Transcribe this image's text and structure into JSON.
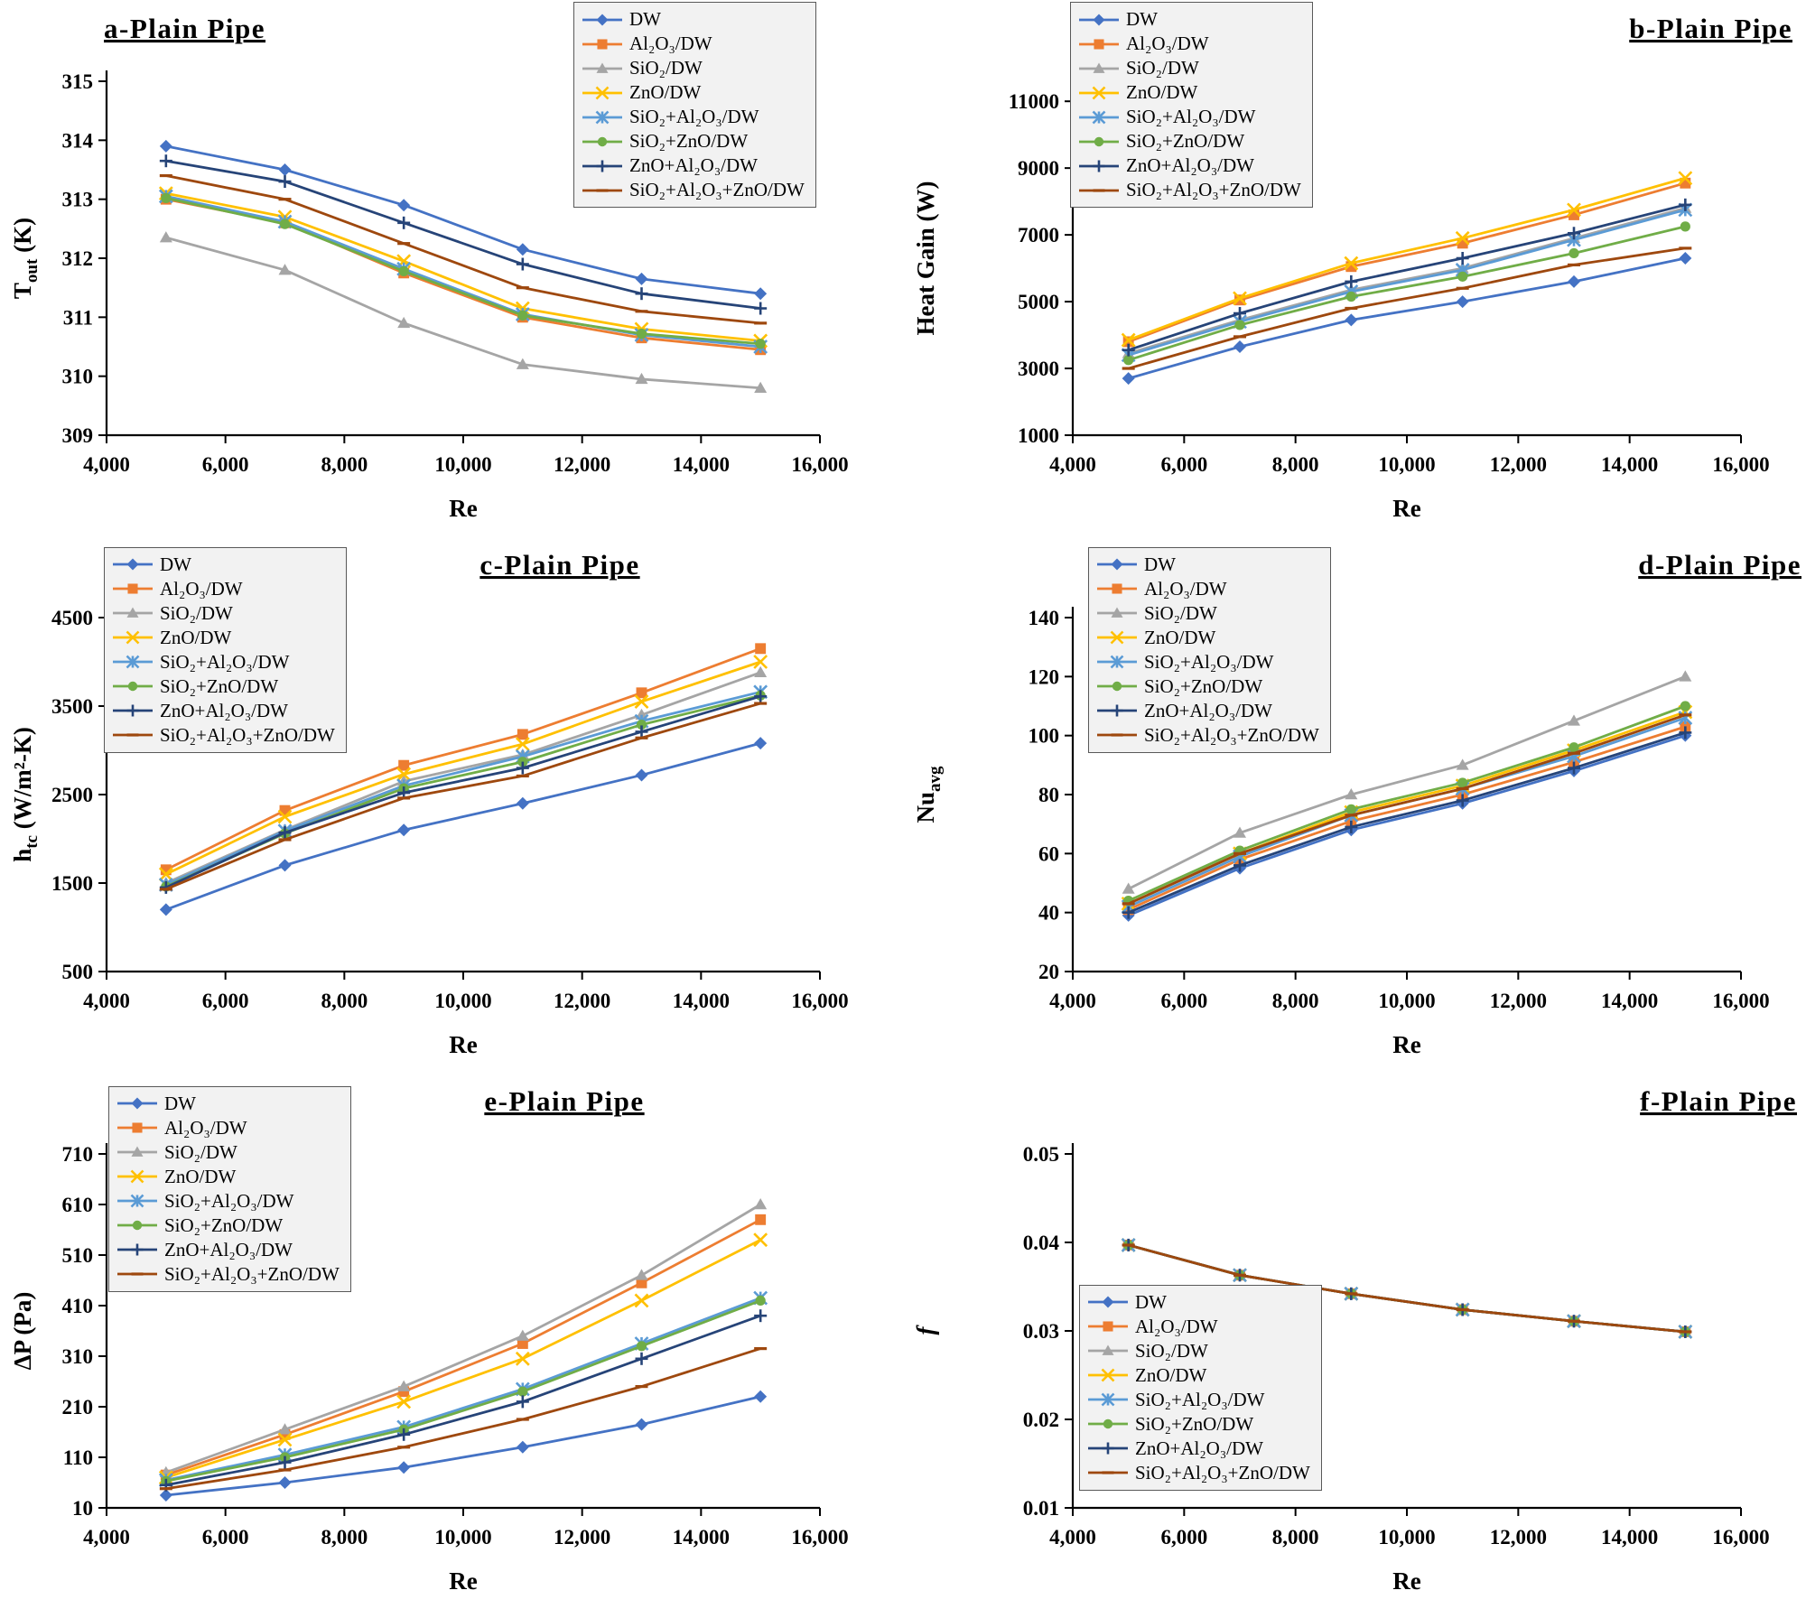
{
  "figure": {
    "x_label": "Re",
    "x_range": [
      4000,
      16000
    ],
    "x_ticks": [
      4000,
      6000,
      8000,
      10000,
      12000,
      14000,
      16000
    ],
    "x_values": [
      5000,
      7000,
      9000,
      11000,
      13000,
      15000
    ],
    "series_meta": [
      {
        "name": "DW",
        "color": "#4472C4",
        "marker": "diamond"
      },
      {
        "name": "Al₂O₃/DW",
        "color": "#ED7D31",
        "marker": "square"
      },
      {
        "name": "SiO₂/DW",
        "color": "#A5A5A5",
        "marker": "triangle"
      },
      {
        "name": "ZnO/DW",
        "color": "#FFC000",
        "marker": "x"
      },
      {
        "name": "SiO₂+Al₂O₃/DW",
        "color": "#5B9BD5",
        "marker": "star"
      },
      {
        "name": "SiO₂+ZnO/DW",
        "color": "#70AD47",
        "marker": "circle"
      },
      {
        "name": "ZnO+Al₂O₃/DW",
        "color": "#264478",
        "marker": "plus"
      },
      {
        "name": "SiO₂+Al₂O₃+ZnO/DW",
        "color": "#9E480E",
        "marker": "dash"
      }
    ]
  },
  "chart_data": [
    {
      "id": "a",
      "type": "line",
      "title": "a-Plain Pipe",
      "xlabel": "Re",
      "ylabel": "T_{out} (K)",
      "ylabel_italic": false,
      "ylim": [
        309,
        315
      ],
      "yticks": [
        309,
        310,
        311,
        312,
        313,
        314,
        315
      ],
      "ydecimals": 0,
      "x": [
        5000,
        7000,
        9000,
        11000,
        13000,
        15000
      ],
      "legend_pos": {
        "left": 0.635,
        "top": 0.004
      },
      "title_pos": {
        "x": 0.115,
        "anchor": "start"
      },
      "series": [
        {
          "name": "DW",
          "values": [
            313.9,
            313.5,
            312.9,
            312.15,
            311.65,
            311.4
          ]
        },
        {
          "name": "Al₂O₃/DW",
          "values": [
            313.0,
            312.6,
            311.75,
            311.0,
            310.65,
            310.45
          ]
        },
        {
          "name": "SiO₂/DW",
          "values": [
            312.35,
            311.8,
            310.9,
            310.2,
            309.95,
            309.8
          ]
        },
        {
          "name": "ZnO/DW",
          "values": [
            313.1,
            312.7,
            311.95,
            311.15,
            310.8,
            310.6
          ]
        },
        {
          "name": "SiO₂+Al₂O₃/DW",
          "values": [
            313.05,
            312.62,
            311.82,
            311.05,
            310.7,
            310.5
          ]
        },
        {
          "name": "SiO₂+ZnO/DW",
          "values": [
            313.02,
            312.58,
            311.78,
            311.03,
            310.72,
            310.55
          ]
        },
        {
          "name": "ZnO+Al₂O₃/DW",
          "values": [
            313.65,
            313.3,
            312.6,
            311.9,
            311.4,
            311.15
          ]
        },
        {
          "name": "SiO₂+Al₂O₃+ZnO/DW",
          "values": [
            313.4,
            313.0,
            312.25,
            311.5,
            311.1,
            310.9
          ]
        }
      ]
    },
    {
      "id": "b",
      "type": "line",
      "title": "b-Plain Pipe",
      "xlabel": "Re",
      "ylabel": "Heat Gain (W)",
      "ylabel_italic": false,
      "ylim": [
        1000,
        11600
      ],
      "yticks": [
        1000,
        3000,
        5000,
        7000,
        9000,
        11000
      ],
      "ydecimals": 0,
      "x": [
        5000,
        7000,
        9000,
        11000,
        13000,
        15000
      ],
      "legend_pos": {
        "left": 0.185,
        "top": 0.004
      },
      "title_pos": {
        "x": 0.985,
        "anchor": "end"
      },
      "series": [
        {
          "name": "DW",
          "values": [
            2700,
            3650,
            4450,
            5000,
            5600,
            6300
          ]
        },
        {
          "name": "Al₂O₃/DW",
          "values": [
            3800,
            5050,
            6050,
            6750,
            7600,
            8550
          ]
        },
        {
          "name": "SiO₂/DW",
          "values": [
            3450,
            4450,
            5350,
            6000,
            6900,
            7800
          ]
        },
        {
          "name": "ZnO/DW",
          "values": [
            3850,
            5100,
            6150,
            6900,
            7750,
            8700
          ]
        },
        {
          "name": "SiO₂+Al₂O₃/DW",
          "values": [
            3400,
            4400,
            5300,
            5950,
            6850,
            7750
          ]
        },
        {
          "name": "SiO₂+ZnO/DW",
          "values": [
            3250,
            4300,
            5150,
            5750,
            6450,
            7250
          ]
        },
        {
          "name": "ZnO+Al₂O₃/DW",
          "values": [
            3550,
            4650,
            5600,
            6300,
            7050,
            7900
          ]
        },
        {
          "name": "SiO₂+Al₂O₃+ZnO/DW",
          "values": [
            3000,
            3950,
            4800,
            5400,
            6100,
            6600
          ]
        }
      ]
    },
    {
      "id": "c",
      "type": "line",
      "title": "c-Plain Pipe",
      "xlabel": "Re",
      "ylabel": "h_{tc} (W/m²-K)",
      "ylabel_italic": false,
      "ylim": [
        500,
        4500
      ],
      "yticks": [
        500,
        1500,
        2500,
        3500,
        4500
      ],
      "ydecimals": 0,
      "x": [
        5000,
        7000,
        9000,
        11000,
        13000,
        15000
      ],
      "legend_pos": {
        "left": 0.115,
        "top": 0.02
      },
      "title_pos": {
        "x": 0.62,
        "anchor": "middle"
      },
      "series": [
        {
          "name": "DW",
          "values": [
            1200,
            1700,
            2100,
            2400,
            2720,
            3080
          ]
        },
        {
          "name": "Al₂O₃/DW",
          "values": [
            1650,
            2320,
            2830,
            3180,
            3650,
            4150
          ]
        },
        {
          "name": "SiO₂/DW",
          "values": [
            1500,
            2100,
            2650,
            2950,
            3400,
            3880
          ]
        },
        {
          "name": "ZnO/DW",
          "values": [
            1600,
            2250,
            2730,
            3070,
            3550,
            4000
          ]
        },
        {
          "name": "SiO₂+Al₂O₃/DW",
          "values": [
            1480,
            2090,
            2600,
            2930,
            3330,
            3660
          ]
        },
        {
          "name": "SiO₂+ZnO/DW",
          "values": [
            1460,
            2060,
            2570,
            2870,
            3290,
            3620
          ]
        },
        {
          "name": "ZnO+Al₂O₃/DW",
          "values": [
            1450,
            2070,
            2520,
            2800,
            3210,
            3610
          ]
        },
        {
          "name": "SiO₂+Al₂O₃+ZnO/DW",
          "values": [
            1430,
            1990,
            2460,
            2710,
            3140,
            3530
          ]
        }
      ]
    },
    {
      "id": "d",
      "type": "line",
      "title": "d-Plain Pipe",
      "xlabel": "Re",
      "ylabel": "Nu_{avg}",
      "ylabel_italic": false,
      "ylim": [
        20,
        140
      ],
      "yticks": [
        20,
        40,
        60,
        80,
        100,
        120,
        140
      ],
      "ydecimals": 0,
      "x": [
        5000,
        7000,
        9000,
        11000,
        13000,
        15000
      ],
      "legend_pos": {
        "left": 0.205,
        "top": 0.02
      },
      "title_pos": {
        "x": 0.995,
        "anchor": "end"
      },
      "series": [
        {
          "name": "DW",
          "values": [
            39,
            55,
            68,
            77,
            88,
            100
          ]
        },
        {
          "name": "Al₂O₃/DW",
          "values": [
            41,
            58,
            71,
            80,
            91,
            103
          ]
        },
        {
          "name": "SiO₂/DW",
          "values": [
            48,
            67,
            80,
            90,
            105,
            120
          ]
        },
        {
          "name": "ZnO/DW",
          "values": [
            43,
            60,
            74,
            83,
            95,
            108
          ]
        },
        {
          "name": "SiO₂+Al₂O₃/DW",
          "values": [
            42,
            59,
            73,
            82,
            93,
            106
          ]
        },
        {
          "name": "SiO₂+ZnO/DW",
          "values": [
            44,
            61,
            75,
            84,
            96,
            110
          ]
        },
        {
          "name": "ZnO+Al₂O₃/DW",
          "values": [
            40,
            56,
            69,
            78,
            89,
            101
          ]
        },
        {
          "name": "SiO₂+Al₂O₃+ZnO/DW",
          "values": [
            43,
            60,
            73,
            82,
            94,
            107
          ]
        }
      ]
    },
    {
      "id": "e",
      "type": "line",
      "title": "e-Plain Pipe",
      "xlabel": "Re",
      "ylabel": "ΔP (Pa)",
      "ylabel_italic": false,
      "ylim": [
        10,
        710
      ],
      "yticks": [
        10,
        110,
        210,
        310,
        410,
        510,
        610,
        710
      ],
      "ydecimals": 0,
      "x": [
        5000,
        7000,
        9000,
        11000,
        13000,
        15000
      ],
      "legend_pos": {
        "left": 0.12,
        "top": 0.025
      },
      "title_pos": {
        "x": 0.625,
        "anchor": "middle"
      },
      "series": [
        {
          "name": "DW",
          "values": [
            35,
            60,
            90,
            130,
            175,
            230
          ]
        },
        {
          "name": "Al₂O₃/DW",
          "values": [
            75,
            155,
            240,
            335,
            455,
            580
          ]
        },
        {
          "name": "SiO₂/DW",
          "values": [
            80,
            165,
            250,
            350,
            470,
            610
          ]
        },
        {
          "name": "ZnO/DW",
          "values": [
            70,
            145,
            220,
            305,
            420,
            540
          ]
        },
        {
          "name": "SiO₂+Al₂O₃/DW",
          "values": [
            65,
            115,
            170,
            245,
            335,
            425
          ]
        },
        {
          "name": "SiO₂+ZnO/DW",
          "values": [
            63,
            110,
            165,
            240,
            330,
            420
          ]
        },
        {
          "name": "ZnO+Al₂O₃/DW",
          "values": [
            55,
            100,
            155,
            220,
            305,
            390
          ]
        },
        {
          "name": "SiO₂+Al₂O₃+ZnO/DW",
          "values": [
            48,
            85,
            130,
            185,
            250,
            325
          ]
        }
      ]
    },
    {
      "id": "f",
      "type": "line",
      "title": "f-Plain Pipe",
      "xlabel": "Re",
      "ylabel": "f",
      "ylabel_italic": true,
      "ylim": [
        0.01,
        0.05
      ],
      "yticks": [
        0.01,
        0.02,
        0.03,
        0.04,
        0.05
      ],
      "ydecimals": 2,
      "x": [
        5000,
        7000,
        9000,
        11000,
        13000,
        15000
      ],
      "legend_pos": {
        "left": 0.195,
        "top": 0.395
      },
      "title_pos": {
        "x": 0.99,
        "anchor": "end"
      },
      "series": [
        {
          "name": "DW",
          "values": [
            0.0397,
            0.0363,
            0.0342,
            0.0324,
            0.0311,
            0.0299
          ]
        },
        {
          "name": "Al₂O₃/DW",
          "values": [
            0.0397,
            0.0363,
            0.0342,
            0.0324,
            0.0311,
            0.0299
          ]
        },
        {
          "name": "SiO₂/DW",
          "values": [
            0.0397,
            0.0363,
            0.0342,
            0.0324,
            0.0311,
            0.0299
          ]
        },
        {
          "name": "ZnO/DW",
          "values": [
            0.0397,
            0.0363,
            0.0342,
            0.0324,
            0.0311,
            0.0299
          ]
        },
        {
          "name": "SiO₂+Al₂O₃/DW",
          "values": [
            0.0397,
            0.0363,
            0.0342,
            0.0324,
            0.0311,
            0.0299
          ]
        },
        {
          "name": "SiO₂+ZnO/DW",
          "values": [
            0.0397,
            0.0363,
            0.0342,
            0.0324,
            0.0311,
            0.0299
          ]
        },
        {
          "name": "ZnO+Al₂O₃/DW",
          "values": [
            0.0397,
            0.0363,
            0.0342,
            0.0324,
            0.0311,
            0.0299
          ]
        },
        {
          "name": "SiO₂+Al₂O₃+ZnO/DW",
          "values": [
            0.0397,
            0.0363,
            0.0342,
            0.0324,
            0.0311,
            0.0299
          ]
        }
      ]
    }
  ]
}
